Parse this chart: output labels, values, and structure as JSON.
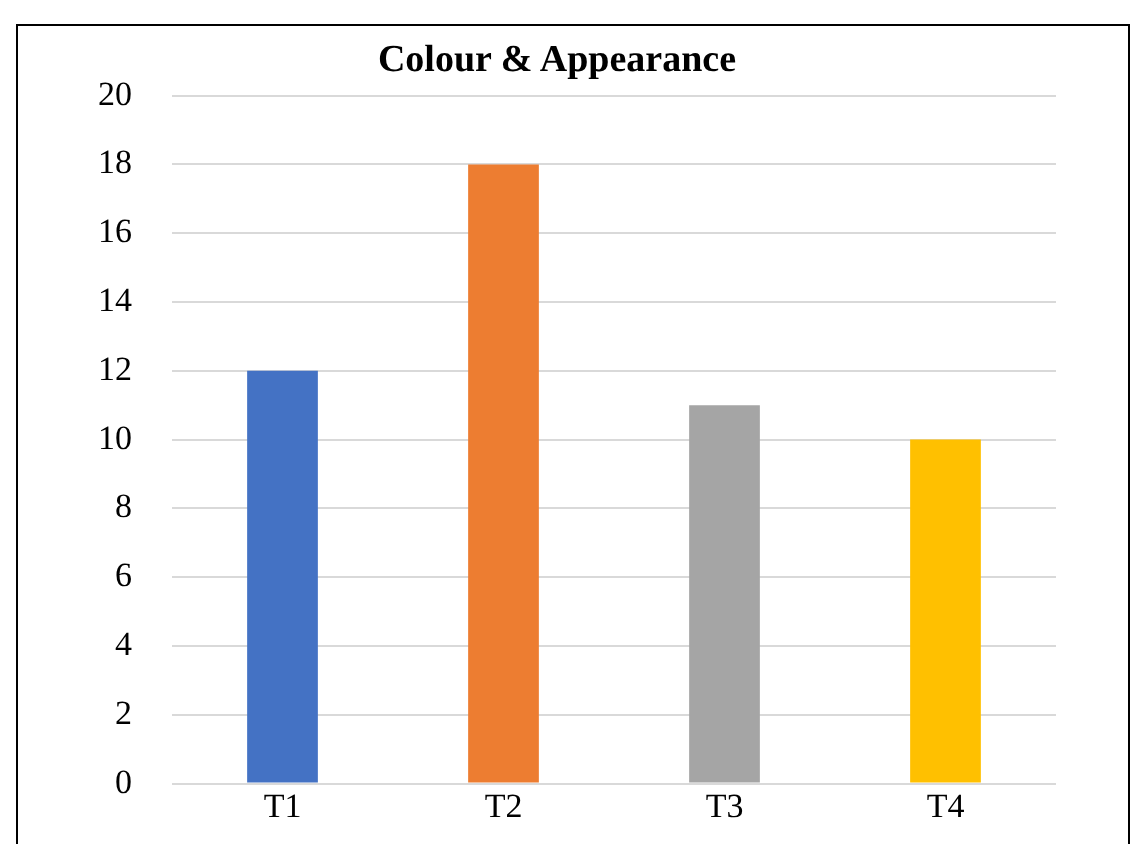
{
  "chart_data": {
    "type": "bar",
    "title": "Colour & Appearance",
    "categories": [
      "T1",
      "T2",
      "T3",
      "T4"
    ],
    "values": [
      12,
      18,
      11,
      10
    ],
    "colors": [
      "#4472c4",
      "#ed7d31",
      "#a5a5a5",
      "#ffc000"
    ],
    "ylim": [
      0,
      20
    ],
    "yticks": [
      0,
      2,
      4,
      6,
      8,
      10,
      12,
      14,
      16,
      18,
      20
    ],
    "grid": "y"
  }
}
